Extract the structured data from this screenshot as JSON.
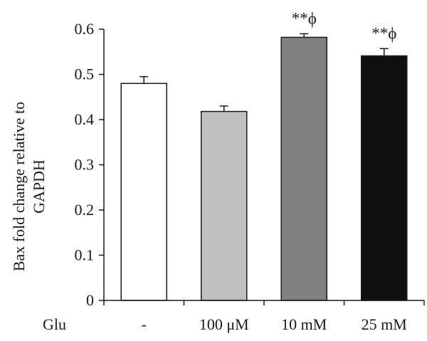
{
  "chart_data": {
    "type": "bar",
    "categories": [
      "-",
      "100 μM",
      "10 mM",
      "25 mM"
    ],
    "values": [
      0.48,
      0.418,
      0.582,
      0.541
    ],
    "errors": [
      0.015,
      0.012,
      0.008,
      0.016
    ],
    "annotations": [
      "",
      "",
      "**ϕ",
      "**ϕ"
    ],
    "bar_colors": [
      "#ffffff",
      "#c0c0c0",
      "#808080",
      "#101010"
    ],
    "ylabel_lines": [
      "Bax fold change relative to",
      "GAPDH"
    ],
    "x_group_label": "Glu",
    "ylim": [
      0,
      0.6
    ],
    "yticks": [
      "0",
      "0.1",
      "0.2",
      "0.3",
      "0.4",
      "0.5",
      "0.6"
    ]
  }
}
